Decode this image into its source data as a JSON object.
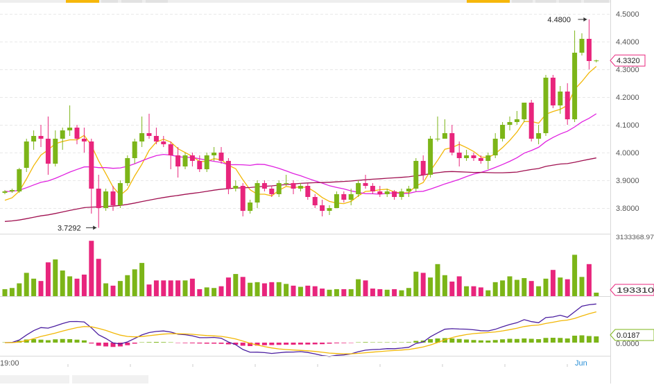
{
  "chart_data": {
    "type": "candlestick",
    "price_axis": {
      "range": [
        3.72,
        4.53
      ],
      "ticks": [
        "4.5000",
        "4.4000",
        "4.3000",
        "4.2000",
        "4.1000",
        "4.0000",
        "3.9000",
        "3.8000"
      ]
    },
    "volume_axis": {
      "max_label": "3133368.97",
      "last_label": "193310"
    },
    "macd_axis": {
      "value_label": "0.0187",
      "zero_label": "0.0000"
    },
    "time_labels": [
      "19:00",
      "Jun"
    ],
    "annotations": {
      "high": "4.4800",
      "low": "3.7292",
      "last": "4.3320"
    },
    "colors": {
      "up": "#7cb518",
      "down": "#e8257c",
      "ma_fast": "#f2b705",
      "ma_mid": "#e020e0",
      "ma_slow": "#a01050",
      "dif": "#4b1ea0",
      "dea": "#f2b705",
      "grid": "#e8e8e8",
      "accent_tab": "#f6b70b",
      "time_accent": "#2a8fd6"
    },
    "candles": [
      {
        "o": 3.855,
        "h": 3.865,
        "l": 3.85,
        "c": 3.86,
        "v": 0.12,
        "macd": 0.02
      },
      {
        "o": 3.86,
        "h": 3.87,
        "l": 3.855,
        "c": 3.865,
        "v": 0.14,
        "macd": 0.03
      },
      {
        "o": 3.86,
        "h": 3.945,
        "l": 3.855,
        "c": 3.94,
        "v": 0.22,
        "macd": 0.1
      },
      {
        "o": 3.945,
        "h": 4.05,
        "l": 3.93,
        "c": 4.04,
        "v": 0.4,
        "macd": 0.18
      },
      {
        "o": 4.04,
        "h": 4.08,
        "l": 4.01,
        "c": 4.06,
        "v": 0.3,
        "macd": 0.2
      },
      {
        "o": 4.06,
        "h": 4.1,
        "l": 4.02,
        "c": 4.05,
        "v": 0.26,
        "macd": 0.17
      },
      {
        "o": 4.05,
        "h": 4.13,
        "l": 3.92,
        "c": 3.96,
        "v": 0.58,
        "macd": 0.14
      },
      {
        "o": 3.96,
        "h": 4.08,
        "l": 3.95,
        "c": 4.05,
        "v": 0.63,
        "macd": 0.19
      },
      {
        "o": 4.05,
        "h": 4.09,
        "l": 4.01,
        "c": 4.08,
        "v": 0.44,
        "macd": 0.21
      },
      {
        "o": 4.08,
        "h": 4.17,
        "l": 4.06,
        "c": 4.09,
        "v": 0.34,
        "macd": 0.2
      },
      {
        "o": 4.09,
        "h": 4.1,
        "l": 4.03,
        "c": 4.05,
        "v": 0.3,
        "macd": 0.17
      },
      {
        "o": 4.05,
        "h": 4.09,
        "l": 4.0,
        "c": 4.04,
        "v": 0.37,
        "macd": 0.13
      },
      {
        "o": 4.04,
        "h": 4.05,
        "l": 3.78,
        "c": 3.87,
        "v": 0.95,
        "macd": -0.05
      },
      {
        "o": 3.87,
        "h": 3.92,
        "l": 3.729,
        "c": 3.8,
        "v": 0.64,
        "macd": -0.18
      },
      {
        "o": 3.8,
        "h": 3.87,
        "l": 3.79,
        "c": 3.86,
        "v": 0.22,
        "macd": -0.22
      },
      {
        "o": 3.86,
        "h": 3.88,
        "l": 3.79,
        "c": 3.81,
        "v": 0.18,
        "macd": -0.25
      },
      {
        "o": 3.81,
        "h": 3.9,
        "l": 3.8,
        "c": 3.89,
        "v": 0.26,
        "macd": -0.22
      },
      {
        "o": 3.89,
        "h": 3.99,
        "l": 3.88,
        "c": 3.98,
        "v": 0.36,
        "macd": -0.15
      },
      {
        "o": 3.98,
        "h": 4.05,
        "l": 3.96,
        "c": 4.04,
        "v": 0.46,
        "macd": -0.06
      },
      {
        "o": 4.04,
        "h": 4.13,
        "l": 4.02,
        "c": 4.07,
        "v": 0.57,
        "macd": 0.02
      },
      {
        "o": 4.07,
        "h": 4.14,
        "l": 4.05,
        "c": 4.06,
        "v": 0.2,
        "macd": 0.03
      },
      {
        "o": 4.06,
        "h": 4.09,
        "l": 4.03,
        "c": 4.04,
        "v": 0.27,
        "macd": 0.04
      },
      {
        "o": 4.04,
        "h": 4.06,
        "l": 4.02,
        "c": 4.03,
        "v": 0.27,
        "macd": 0.03
      },
      {
        "o": 4.03,
        "h": 4.04,
        "l": 3.94,
        "c": 3.99,
        "v": 0.27,
        "macd": 0.02
      },
      {
        "o": 3.99,
        "h": 4.02,
        "l": 3.91,
        "c": 3.95,
        "v": 0.27,
        "macd": -0.02
      },
      {
        "o": 3.95,
        "h": 4.0,
        "l": 3.94,
        "c": 3.99,
        "v": 0.27,
        "macd": -0.03
      },
      {
        "o": 3.99,
        "h": 4.0,
        "l": 3.95,
        "c": 3.97,
        "v": 0.3,
        "macd": -0.04
      },
      {
        "o": 3.97,
        "h": 3.99,
        "l": 3.93,
        "c": 3.94,
        "v": 0.12,
        "macd": -0.05
      },
      {
        "o": 3.94,
        "h": 4.0,
        "l": 3.93,
        "c": 3.99,
        "v": 0.15,
        "macd": -0.06
      },
      {
        "o": 3.99,
        "h": 4.02,
        "l": 3.97,
        "c": 4.0,
        "v": 0.14,
        "macd": -0.06
      },
      {
        "o": 4.0,
        "h": 4.02,
        "l": 3.96,
        "c": 3.97,
        "v": 0.17,
        "macd": -0.07
      },
      {
        "o": 3.97,
        "h": 3.98,
        "l": 3.85,
        "c": 3.87,
        "v": 0.32,
        "macd": -0.1
      },
      {
        "o": 3.87,
        "h": 3.9,
        "l": 3.86,
        "c": 3.88,
        "v": 0.38,
        "macd": -0.12
      },
      {
        "o": 3.88,
        "h": 3.89,
        "l": 3.77,
        "c": 3.79,
        "v": 0.33,
        "macd": -0.18
      },
      {
        "o": 3.79,
        "h": 3.83,
        "l": 3.78,
        "c": 3.82,
        "v": 0.23,
        "macd": -0.2
      },
      {
        "o": 3.82,
        "h": 3.9,
        "l": 3.8,
        "c": 3.89,
        "v": 0.24,
        "macd": -0.17
      },
      {
        "o": 3.89,
        "h": 3.9,
        "l": 3.86,
        "c": 3.87,
        "v": 0.22,
        "macd": -0.15
      },
      {
        "o": 3.87,
        "h": 3.88,
        "l": 3.84,
        "c": 3.85,
        "v": 0.24,
        "macd": -0.14
      },
      {
        "o": 3.85,
        "h": 3.9,
        "l": 3.84,
        "c": 3.89,
        "v": 0.24,
        "macd": -0.13
      },
      {
        "o": 3.89,
        "h": 3.92,
        "l": 3.88,
        "c": 3.89,
        "v": 0.21,
        "macd": -0.12
      },
      {
        "o": 3.89,
        "h": 3.9,
        "l": 3.85,
        "c": 3.87,
        "v": 0.18,
        "macd": -0.12
      },
      {
        "o": 3.87,
        "h": 3.89,
        "l": 3.86,
        "c": 3.88,
        "v": 0.16,
        "macd": -0.11
      },
      {
        "o": 3.88,
        "h": 3.89,
        "l": 3.83,
        "c": 3.84,
        "v": 0.18,
        "macd": -0.11
      },
      {
        "o": 3.84,
        "h": 3.85,
        "l": 3.8,
        "c": 3.81,
        "v": 0.17,
        "macd": -0.1
      },
      {
        "o": 3.81,
        "h": 3.83,
        "l": 3.77,
        "c": 3.79,
        "v": 0.13,
        "macd": -0.09
      },
      {
        "o": 3.79,
        "h": 3.81,
        "l": 3.775,
        "c": 3.8,
        "v": 0.11,
        "macd": -0.06
      },
      {
        "o": 3.8,
        "h": 3.86,
        "l": 3.8,
        "c": 3.85,
        "v": 0.12,
        "macd": -0.04
      },
      {
        "o": 3.85,
        "h": 3.86,
        "l": 3.82,
        "c": 3.83,
        "v": 0.12,
        "macd": -0.03
      },
      {
        "o": 3.83,
        "h": 3.87,
        "l": 3.81,
        "c": 3.85,
        "v": 0.12,
        "macd": -0.02
      },
      {
        "o": 3.85,
        "h": 3.9,
        "l": 3.84,
        "c": 3.89,
        "v": 0.29,
        "macd": 0.02
      },
      {
        "o": 3.89,
        "h": 3.92,
        "l": 3.87,
        "c": 3.88,
        "v": 0.27,
        "macd": 0.03
      },
      {
        "o": 3.88,
        "h": 3.89,
        "l": 3.85,
        "c": 3.86,
        "v": 0.13,
        "macd": 0.02
      },
      {
        "o": 3.86,
        "h": 3.88,
        "l": 3.84,
        "c": 3.85,
        "v": 0.12,
        "macd": 0.02
      },
      {
        "o": 3.85,
        "h": 3.87,
        "l": 3.84,
        "c": 3.86,
        "v": 0.11,
        "macd": 0.02
      },
      {
        "o": 3.86,
        "h": 3.865,
        "l": 3.83,
        "c": 3.84,
        "v": 0.12,
        "macd": 0.02
      },
      {
        "o": 3.84,
        "h": 3.87,
        "l": 3.83,
        "c": 3.86,
        "v": 0.1,
        "macd": 0.02
      },
      {
        "o": 3.86,
        "h": 3.88,
        "l": 3.84,
        "c": 3.87,
        "v": 0.14,
        "macd": 0.03
      },
      {
        "o": 3.87,
        "h": 3.98,
        "l": 3.86,
        "c": 3.97,
        "v": 0.42,
        "macd": 0.1
      },
      {
        "o": 3.97,
        "h": 3.99,
        "l": 3.9,
        "c": 3.92,
        "v": 0.4,
        "macd": 0.12
      },
      {
        "o": 3.92,
        "h": 4.06,
        "l": 3.91,
        "c": 4.05,
        "v": 0.32,
        "macd": 0.2
      },
      {
        "o": 4.05,
        "h": 4.13,
        "l": 4.04,
        "c": 4.05,
        "v": 0.55,
        "macd": 0.24
      },
      {
        "o": 4.05,
        "h": 4.12,
        "l": 4.05,
        "c": 4.07,
        "v": 0.36,
        "macd": 0.26
      },
      {
        "o": 4.07,
        "h": 4.1,
        "l": 3.99,
        "c": 4.0,
        "v": 0.25,
        "macd": 0.24
      },
      {
        "o": 4.0,
        "h": 4.04,
        "l": 3.95,
        "c": 3.98,
        "v": 0.34,
        "macd": 0.21
      },
      {
        "o": 3.98,
        "h": 4.01,
        "l": 3.97,
        "c": 3.99,
        "v": 0.17,
        "macd": 0.18
      },
      {
        "o": 3.99,
        "h": 4.0,
        "l": 3.97,
        "c": 3.98,
        "v": 0.17,
        "macd": 0.15
      },
      {
        "o": 3.98,
        "h": 3.99,
        "l": 3.96,
        "c": 3.97,
        "v": 0.15,
        "macd": 0.13
      },
      {
        "o": 3.97,
        "h": 4.0,
        "l": 3.94,
        "c": 3.99,
        "v": 0.1,
        "macd": 0.12
      },
      {
        "o": 3.99,
        "h": 4.07,
        "l": 3.98,
        "c": 4.05,
        "v": 0.24,
        "macd": 0.15
      },
      {
        "o": 4.05,
        "h": 4.11,
        "l": 4.04,
        "c": 4.1,
        "v": 0.27,
        "macd": 0.19
      },
      {
        "o": 4.1,
        "h": 4.13,
        "l": 4.08,
        "c": 4.11,
        "v": 0.34,
        "macd": 0.22
      },
      {
        "o": 4.11,
        "h": 4.15,
        "l": 4.1,
        "c": 4.12,
        "v": 0.28,
        "macd": 0.21
      },
      {
        "o": 4.12,
        "h": 4.18,
        "l": 4.11,
        "c": 4.18,
        "v": 0.31,
        "macd": 0.24
      },
      {
        "o": 4.18,
        "h": 4.19,
        "l": 4.04,
        "c": 4.05,
        "v": 0.26,
        "macd": 0.22
      },
      {
        "o": 4.05,
        "h": 4.1,
        "l": 4.03,
        "c": 4.07,
        "v": 0.17,
        "macd": 0.2
      },
      {
        "o": 4.07,
        "h": 4.28,
        "l": 4.06,
        "c": 4.27,
        "v": 0.3,
        "macd": 0.27
      },
      {
        "o": 4.27,
        "h": 4.28,
        "l": 4.16,
        "c": 4.17,
        "v": 0.45,
        "macd": 0.28
      },
      {
        "o": 4.17,
        "h": 4.24,
        "l": 4.14,
        "c": 4.22,
        "v": 0.32,
        "macd": 0.27
      },
      {
        "o": 4.22,
        "h": 4.25,
        "l": 4.1,
        "c": 4.12,
        "v": 0.29,
        "macd": 0.24
      },
      {
        "o": 4.12,
        "h": 4.44,
        "l": 4.11,
        "c": 4.36,
        "v": 0.71,
        "macd": 0.4
      },
      {
        "o": 4.36,
        "h": 4.43,
        "l": 4.35,
        "c": 4.41,
        "v": 0.33,
        "macd": 0.42
      },
      {
        "o": 4.41,
        "h": 4.48,
        "l": 4.3,
        "c": 4.33,
        "v": 0.55,
        "macd": 0.38
      },
      {
        "o": 4.33,
        "h": 4.335,
        "l": 4.325,
        "c": 4.332,
        "v": 0.06,
        "macd": 0.36
      }
    ]
  }
}
